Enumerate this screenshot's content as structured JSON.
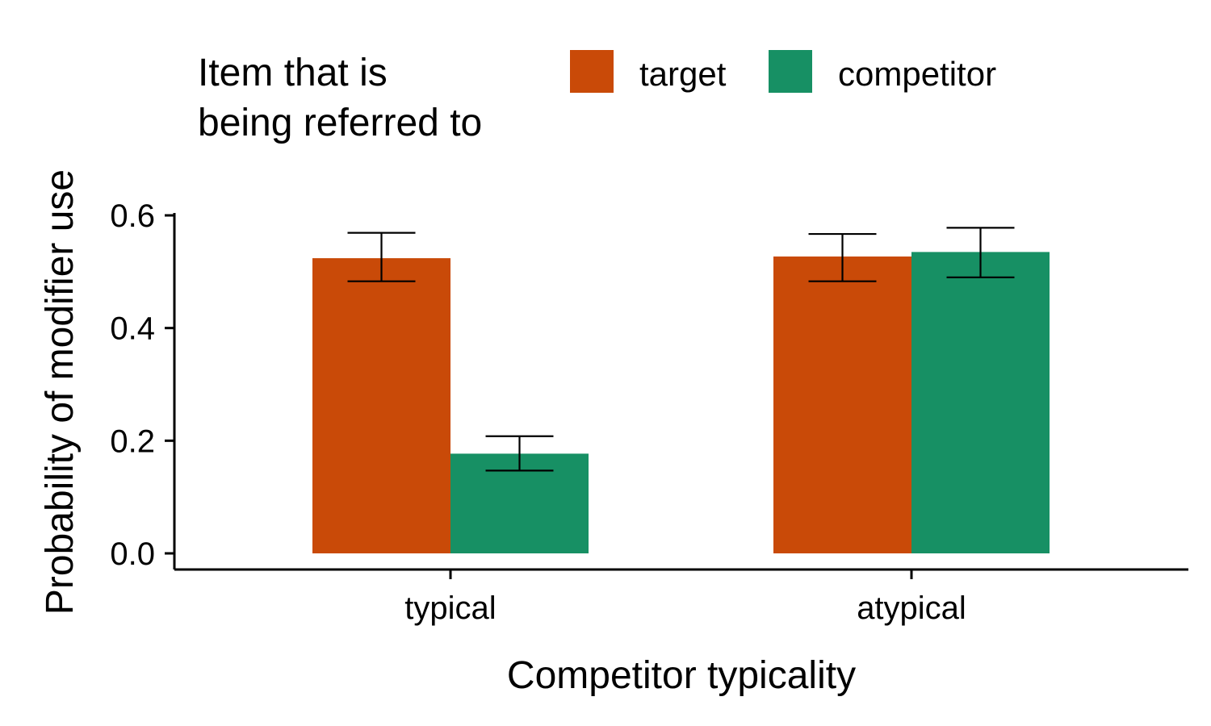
{
  "chart_data": {
    "type": "bar",
    "title": "",
    "xlabel": "Competitor typicality",
    "ylabel": "Probability of modifier use",
    "categories": [
      "typical",
      "atypical"
    ],
    "ylim": [
      0,
      0.6
    ],
    "yticks": [
      "0.0",
      "0.2",
      "0.4",
      "0.6"
    ],
    "grid": false,
    "legend": {
      "title_lines": [
        "Item that is",
        "being referred to"
      ],
      "placement": "top"
    },
    "series": [
      {
        "name": "target",
        "color": "#c94a08",
        "values": [
          0.524,
          0.527
        ],
        "error_low": [
          0.483,
          0.483
        ],
        "error_high": [
          0.569,
          0.567
        ]
      },
      {
        "name": "competitor",
        "color": "#179064",
        "values": [
          0.177,
          0.535
        ],
        "error_low": [
          0.147,
          0.49
        ],
        "error_high": [
          0.208,
          0.578
        ]
      }
    ]
  }
}
